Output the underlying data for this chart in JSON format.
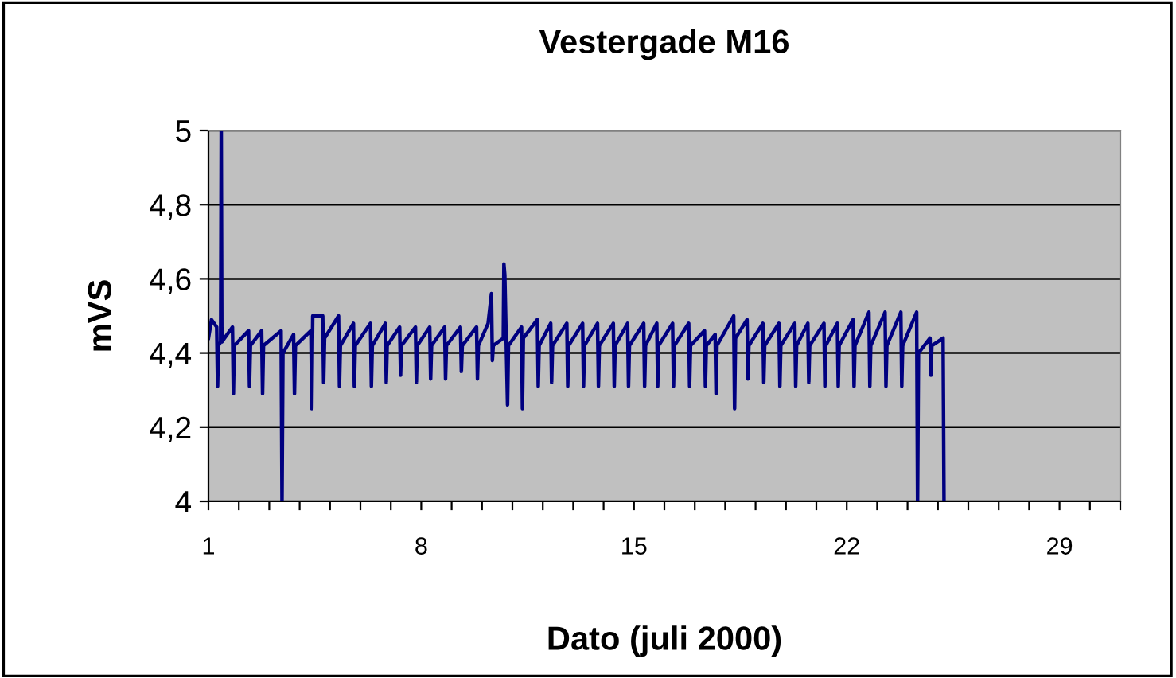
{
  "chart_data": {
    "type": "line",
    "title": "Vestergade M16",
    "xlabel": "Dato (juli 2000)",
    "ylabel": "mVS",
    "xlim": [
      1,
      31
    ],
    "ylim": [
      4,
      5
    ],
    "xticks": [
      1,
      {
        "value": 2,
        "label": null
      },
      {
        "value": 3,
        "label": null
      },
      {
        "value": 4,
        "label": null
      },
      {
        "value": 5,
        "label": null
      },
      {
        "value": 6,
        "label": null
      },
      {
        "value": 7,
        "label": null
      },
      8,
      {
        "value": 9,
        "label": null
      },
      {
        "value": 10,
        "label": null
      },
      {
        "value": 11,
        "label": null
      },
      {
        "value": 12,
        "label": null
      },
      {
        "value": 13,
        "label": null
      },
      {
        "value": 14,
        "label": null
      },
      15,
      {
        "value": 16,
        "label": null
      },
      {
        "value": 17,
        "label": null
      },
      {
        "value": 18,
        "label": null
      },
      {
        "value": 19,
        "label": null
      },
      {
        "value": 20,
        "label": null
      },
      {
        "value": 21,
        "label": null
      },
      22,
      {
        "value": 23,
        "label": null
      },
      {
        "value": 24,
        "label": null
      },
      {
        "value": 25,
        "label": null
      },
      {
        "value": 26,
        "label": null
      },
      {
        "value": 27,
        "label": null
      },
      {
        "value": 28,
        "label": null
      },
      29,
      {
        "value": 30,
        "label": null
      },
      {
        "value": 31,
        "label": null
      }
    ],
    "yticks": [
      4,
      {
        "value": 4.2,
        "label": "4,2"
      },
      {
        "value": 4.4,
        "label": "4,4"
      },
      {
        "value": 4.6,
        "label": "4,6"
      },
      {
        "value": 4.8,
        "label": "4,8"
      },
      5
    ],
    "grid": "y",
    "marker": "none",
    "line_style": "solid",
    "series": [
      {
        "color": "#000080",
        "x": [
          1.0,
          1.1,
          1.27,
          1.3,
          1.33,
          1.4,
          1.42,
          1.44,
          1.79,
          1.82,
          1.85,
          2.32,
          2.35,
          2.38,
          2.75,
          2.78,
          2.81,
          3.39,
          3.42,
          3.45,
          3.8,
          3.83,
          3.86,
          4.37,
          4.4,
          4.43,
          4.76,
          4.79,
          4.82,
          5.28,
          5.31,
          5.34,
          5.77,
          5.8,
          5.83,
          6.33,
          6.36,
          6.39,
          6.82,
          6.85,
          6.88,
          7.29,
          7.32,
          7.35,
          7.81,
          7.84,
          7.87,
          8.28,
          8.31,
          8.34,
          8.77,
          8.8,
          8.83,
          9.29,
          9.32,
          9.35,
          9.82,
          9.85,
          9.88,
          10.2,
          10.31,
          10.34,
          10.37,
          10.7,
          10.72,
          10.75,
          10.84,
          10.87,
          11.3,
          11.33,
          11.36,
          11.82,
          11.85,
          11.88,
          12.26,
          12.29,
          12.32,
          12.79,
          12.82,
          12.85,
          13.31,
          13.34,
          13.37,
          13.8,
          13.83,
          13.86,
          14.32,
          14.35,
          14.38,
          14.79,
          14.82,
          14.85,
          15.32,
          15.35,
          15.38,
          15.75,
          15.78,
          15.81,
          16.27,
          16.3,
          16.33,
          16.8,
          16.83,
          16.86,
          17.32,
          17.35,
          17.38,
          17.67,
          17.7,
          17.73,
          18.28,
          18.31,
          18.34,
          18.72,
          18.75,
          18.78,
          19.24,
          19.27,
          19.3,
          19.77,
          19.8,
          19.83,
          20.29,
          20.32,
          20.35,
          20.72,
          20.75,
          20.78,
          21.25,
          21.28,
          21.31,
          21.69,
          21.72,
          21.75,
          22.21,
          22.24,
          22.27,
          22.73,
          22.76,
          22.79,
          23.26,
          23.29,
          23.32,
          23.78,
          23.81,
          23.84,
          24.3,
          24.33,
          24.36,
          24.74,
          24.77,
          24.8,
          25.17,
          25.2
        ],
        "values": [
          4.44,
          4.49,
          4.47,
          4.31,
          4.42,
          4.43,
          5.0,
          4.43,
          4.47,
          4.29,
          4.42,
          4.46,
          4.31,
          4.42,
          4.46,
          4.29,
          4.42,
          4.46,
          4.0,
          4.4,
          4.45,
          4.29,
          4.42,
          4.46,
          4.25,
          4.5,
          4.5,
          4.32,
          4.44,
          4.5,
          4.31,
          4.42,
          4.48,
          4.31,
          4.42,
          4.48,
          4.31,
          4.42,
          4.48,
          4.32,
          4.42,
          4.47,
          4.34,
          4.42,
          4.47,
          4.32,
          4.42,
          4.47,
          4.33,
          4.42,
          4.47,
          4.33,
          4.42,
          4.47,
          4.35,
          4.42,
          4.47,
          4.33,
          4.42,
          4.48,
          4.56,
          4.38,
          4.42,
          4.44,
          4.64,
          4.61,
          4.26,
          4.42,
          4.47,
          4.25,
          4.44,
          4.49,
          4.31,
          4.42,
          4.48,
          4.32,
          4.42,
          4.48,
          4.31,
          4.42,
          4.48,
          4.31,
          4.42,
          4.48,
          4.31,
          4.42,
          4.48,
          4.31,
          4.42,
          4.48,
          4.31,
          4.42,
          4.48,
          4.31,
          4.42,
          4.48,
          4.31,
          4.42,
          4.48,
          4.31,
          4.42,
          4.48,
          4.31,
          4.42,
          4.46,
          4.31,
          4.42,
          4.45,
          4.29,
          4.42,
          4.5,
          4.25,
          4.44,
          4.49,
          4.33,
          4.42,
          4.48,
          4.32,
          4.42,
          4.48,
          4.31,
          4.42,
          4.48,
          4.31,
          4.42,
          4.48,
          4.32,
          4.42,
          4.48,
          4.31,
          4.42,
          4.48,
          4.31,
          4.42,
          4.49,
          4.31,
          4.42,
          4.51,
          4.31,
          4.42,
          4.51,
          4.31,
          4.42,
          4.51,
          4.31,
          4.42,
          4.51,
          4.0,
          4.4,
          4.44,
          4.34,
          4.42,
          4.44,
          4.0
        ]
      }
    ]
  }
}
